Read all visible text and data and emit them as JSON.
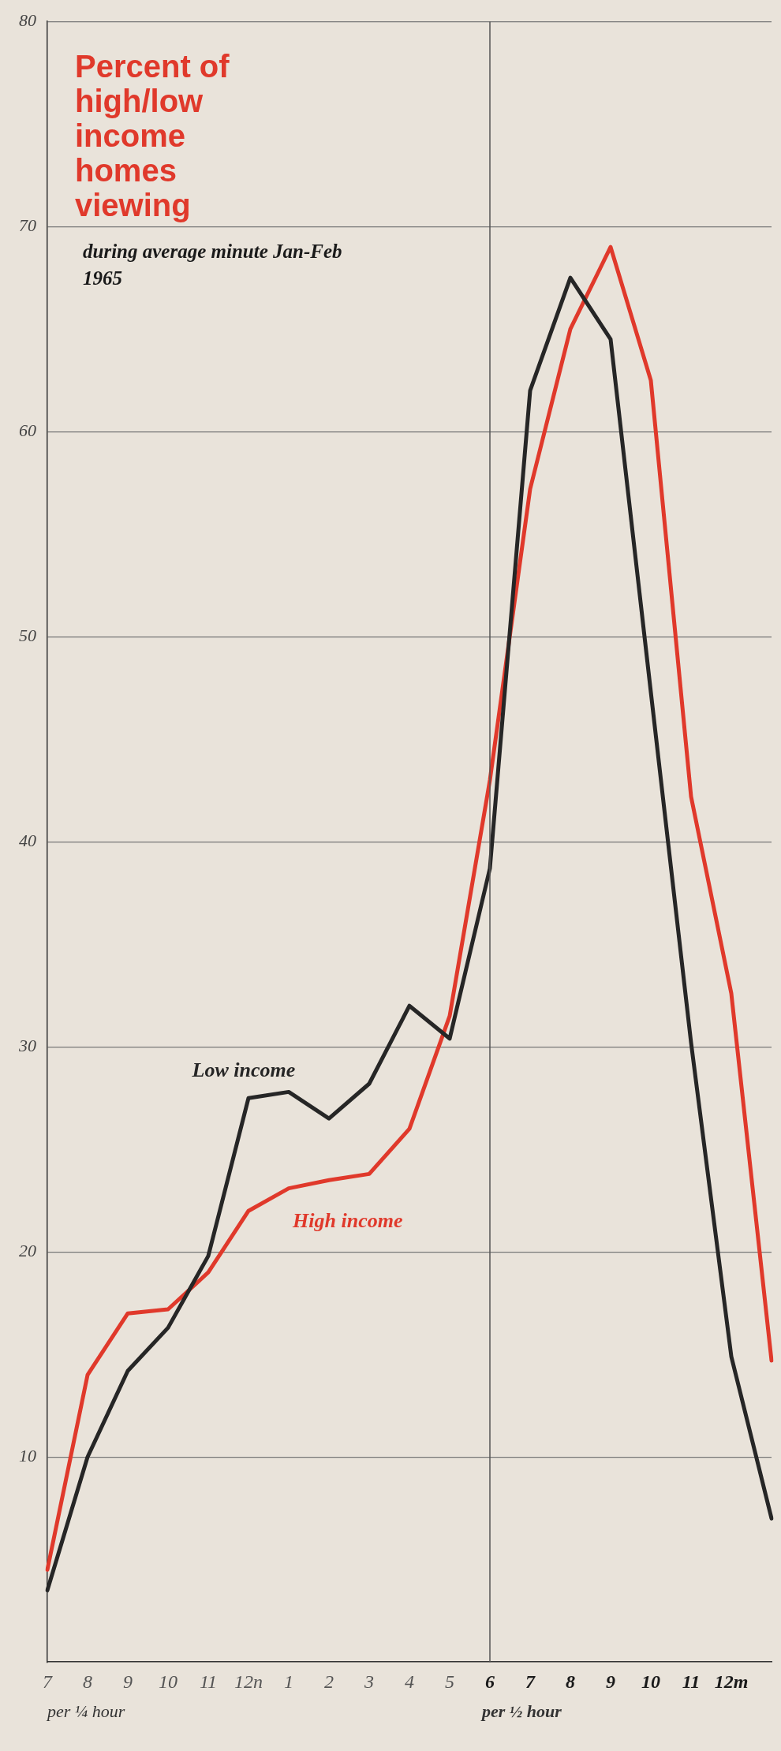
{
  "chart_data": {
    "type": "line",
    "title": "Percent of high/low income homes viewing",
    "subtitle": "during average minute Jan-Feb 1965",
    "categories": [
      "7",
      "8",
      "9",
      "10",
      "11",
      "12n",
      "1",
      "2",
      "3",
      "4",
      "5",
      "6",
      "7",
      "8",
      "9",
      "10",
      "11",
      "12m",
      null
    ],
    "series": [
      {
        "name": "Low income",
        "color": "#262626",
        "values": [
          3.5,
          10,
          14.2,
          16.3,
          19.8,
          27.5,
          27.8,
          26.5,
          28.2,
          32,
          30.4,
          38.7,
          62,
          67.5,
          64.5,
          47.3,
          30.2,
          14.9,
          7
        ]
      },
      {
        "name": "High income",
        "color": "#e0392b",
        "values": [
          4.5,
          14,
          17,
          17.2,
          19,
          22,
          23.1,
          23.5,
          23.8,
          26,
          31.5,
          43,
          57.2,
          65,
          69,
          62.5,
          42.2,
          32.6,
          14.7
        ]
      }
    ],
    "ylim": [
      0,
      80
    ],
    "yticks": [
      10,
      20,
      30,
      40,
      50,
      60,
      70,
      80
    ],
    "grid": "y",
    "legend": false,
    "marker": "none",
    "line_style": "solid",
    "ref_lines": [
      {
        "axis": "x",
        "value": "6",
        "color": "#555555"
      }
    ],
    "annotations": [
      "per ¼ hour",
      "per ½ hour"
    ]
  }
}
